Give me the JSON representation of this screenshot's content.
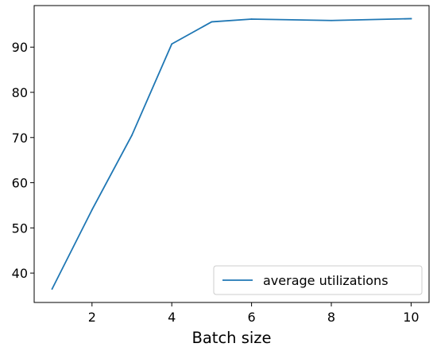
{
  "chart_data": {
    "type": "line",
    "title": "",
    "xlabel": "Batch size",
    "ylabel": "",
    "xlim": [
      0.55,
      10.45
    ],
    "ylim": [
      33.5,
      99.2
    ],
    "x_ticks": [
      2,
      4,
      6,
      8,
      10
    ],
    "y_ticks": [
      40,
      50,
      60,
      70,
      80,
      90
    ],
    "grid": false,
    "legend": {
      "position": "lower right"
    },
    "series": [
      {
        "name": "average utilizations",
        "color": "#1f77b4",
        "x": [
          1,
          2,
          3,
          4,
          5,
          6,
          8,
          10
        ],
        "y": [
          36.5,
          54.0,
          70.5,
          90.7,
          95.6,
          96.2,
          95.9,
          96.3
        ]
      }
    ]
  }
}
